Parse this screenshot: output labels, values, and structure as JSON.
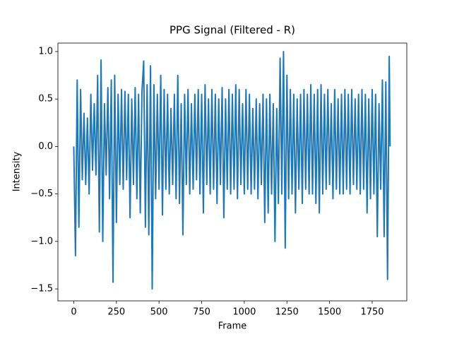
{
  "chart_data": {
    "type": "line",
    "title": "PPG Signal (Filtered - R)",
    "xlabel": "Frame",
    "ylabel": "Intensity",
    "color": "#1f77b4",
    "x": [
      0,
      10,
      20,
      30,
      40,
      50,
      60,
      70,
      80,
      90,
      100,
      110,
      120,
      130,
      140,
      150,
      160,
      170,
      180,
      190,
      200,
      210,
      220,
      230,
      240,
      250,
      260,
      270,
      280,
      290,
      300,
      310,
      320,
      330,
      340,
      350,
      360,
      370,
      380,
      390,
      400,
      410,
      420,
      430,
      440,
      450,
      460,
      470,
      480,
      490,
      500,
      510,
      520,
      530,
      540,
      550,
      560,
      570,
      580,
      590,
      600,
      610,
      620,
      630,
      640,
      650,
      660,
      670,
      680,
      690,
      700,
      710,
      720,
      730,
      740,
      750,
      760,
      770,
      780,
      790,
      800,
      810,
      820,
      830,
      840,
      850,
      860,
      870,
      880,
      890,
      900,
      910,
      920,
      930,
      940,
      950,
      960,
      970,
      980,
      990,
      1000,
      1010,
      1020,
      1030,
      1040,
      1050,
      1060,
      1070,
      1080,
      1090,
      1100,
      1110,
      1120,
      1130,
      1140,
      1150,
      1160,
      1170,
      1180,
      1190,
      1200,
      1210,
      1220,
      1230,
      1240,
      1250,
      1260,
      1270,
      1280,
      1290,
      1300,
      1310,
      1320,
      1330,
      1340,
      1350,
      1360,
      1370,
      1380,
      1390,
      1400,
      1410,
      1420,
      1430,
      1440,
      1450,
      1460,
      1470,
      1480,
      1490,
      1500,
      1510,
      1520,
      1530,
      1540,
      1550,
      1560,
      1570,
      1580,
      1590,
      1600,
      1610,
      1620,
      1630,
      1640,
      1650,
      1660,
      1670,
      1680,
      1690,
      1700,
      1710,
      1720,
      1730,
      1740,
      1750,
      1760,
      1770,
      1780,
      1790,
      1800,
      1810,
      1820,
      1830,
      1840,
      1850,
      1855
    ],
    "values": [
      0,
      -1.15,
      0.7,
      -0.85,
      0.6,
      -0.35,
      0.35,
      -0.4,
      0.3,
      -0.5,
      0.55,
      -0.25,
      0.45,
      -0.3,
      0.75,
      -0.9,
      0.91,
      -1.0,
      0.45,
      -0.3,
      0.62,
      -0.55,
      0.7,
      -1.43,
      0.75,
      -0.8,
      0.55,
      -0.4,
      0.6,
      -0.45,
      0.58,
      -0.35,
      0.55,
      -0.75,
      0.5,
      -0.4,
      0.62,
      -0.55,
      0.55,
      -0.7,
      0.58,
      0.9,
      -0.85,
      0.65,
      -0.93,
      0.85,
      -1.5,
      0.65,
      -0.55,
      0.55,
      -0.45,
      0.75,
      -0.72,
      0.6,
      -0.45,
      0.55,
      -0.5,
      0.4,
      -0.4,
      0.55,
      -0.55,
      0.75,
      -0.6,
      0.45,
      -0.93,
      0.55,
      -0.4,
      0.6,
      -0.5,
      0.45,
      -0.45,
      0.55,
      -0.35,
      0.6,
      -0.5,
      0.55,
      -0.7,
      0.65,
      -0.4,
      0.5,
      -0.5,
      0.6,
      -0.45,
      0.55,
      -0.6,
      0.5,
      -0.4,
      0.62,
      -0.75,
      0.5,
      -0.45,
      0.6,
      -0.5,
      0.55,
      -0.45,
      0.65,
      -0.55,
      0.6,
      -0.4,
      0.45,
      -0.5,
      0.6,
      -0.45,
      0.55,
      -0.5,
      0.4,
      -0.45,
      0.5,
      -0.55,
      0.45,
      -0.4,
      0.55,
      -0.8,
      0.5,
      -0.7,
      0.55,
      -0.5,
      0.45,
      -1.0,
      0.4,
      -0.6,
      0.93,
      -0.5,
      1.0,
      -1.07,
      0.75,
      -0.55,
      0.6,
      -0.5,
      0.55,
      -0.7,
      0.5,
      -0.45,
      0.55,
      -0.6,
      0.6,
      -0.45,
      0.55,
      -0.5,
      0.65,
      -0.5,
      0.55,
      -0.6,
      0.6,
      -0.7,
      0.65,
      -0.5,
      0.55,
      -0.45,
      0.6,
      -0.4,
      0.45,
      -0.55,
      0.6,
      -0.45,
      0.5,
      -0.5,
      0.55,
      -0.5,
      0.6,
      -0.45,
      0.55,
      -0.5,
      0.6,
      -0.4,
      0.5,
      -0.45,
      0.55,
      -0.5,
      0.6,
      -0.45,
      0.55,
      -0.7,
      0.5,
      -0.55,
      0.6,
      -0.5,
      0.55,
      -0.95,
      0.45,
      -0.45,
      0.7,
      -0.95,
      0.68,
      -1.4,
      0.95,
      0
    ],
    "xlim": [
      -93,
      1953
    ],
    "xticks": [
      0,
      250,
      500,
      750,
      1000,
      1250,
      1500,
      1750
    ],
    "ylim": [
      -1.626,
      1.089
    ],
    "yticks": [
      {
        "value": -1.5,
        "label": "−1.5"
      },
      {
        "value": -1.0,
        "label": "−1.0"
      },
      {
        "value": -0.5,
        "label": "−0.5"
      },
      {
        "value": 0,
        "label": "0.0"
      },
      0.5,
      {
        "value": 1.0,
        "label": "1.0"
      }
    ],
    "grid": false
  }
}
